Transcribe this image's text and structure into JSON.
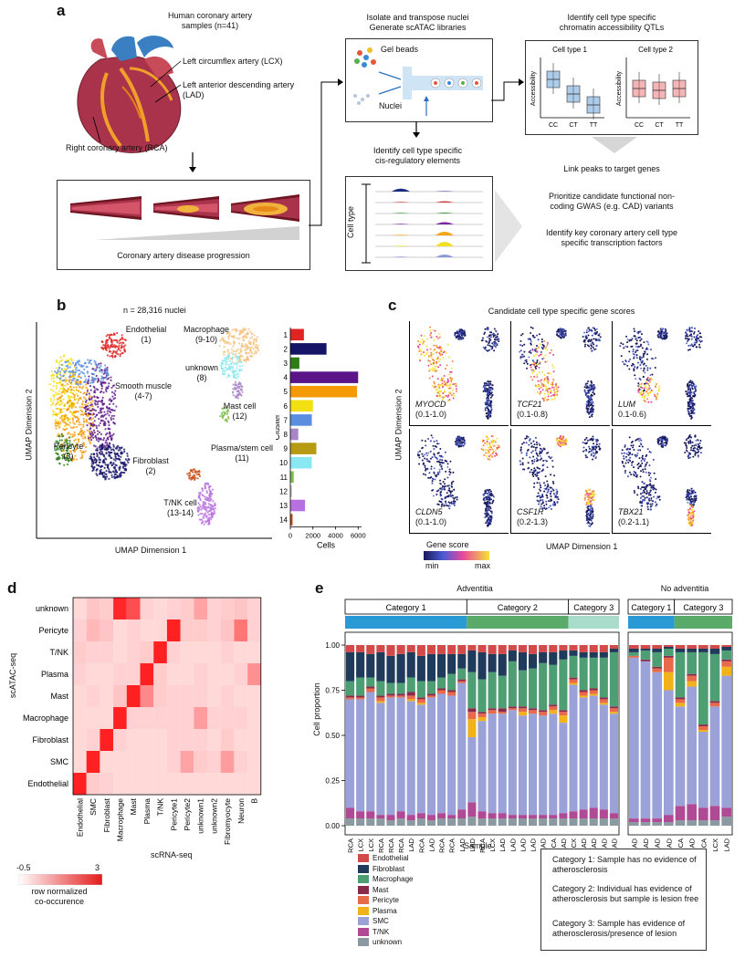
{
  "panels": {
    "a": "a",
    "b": "b",
    "c": "c",
    "d": "d",
    "e": "e"
  },
  "a": {
    "samples_title": "Human coronary artery\nsamples (n=41)",
    "lcx": "Left circumflex artery (LCX)",
    "lad": "Left anterior descending artery\n(LAD)",
    "rca": "Right coronary artery (RCA)",
    "progression": "Coronary artery disease progression",
    "isolate_title": "Isolate and transpose nuclei\nGenerate scATAC libraries",
    "gel_beads": "Gel beads",
    "nuclei": "Nuclei",
    "cre_title": "Identify cell type specific\ncis-regulatory elements",
    "cell_type_axis": "Cell type",
    "qtl_title": "Identify cell type specific\nchromatin accessibility QTLs",
    "qtl_panels": [
      {
        "title": "Cell type 1",
        "ylabel": "Accessibility",
        "genotypes": [
          "CC",
          "CT",
          "TT"
        ],
        "color": "#4a8fd0"
      },
      {
        "title": "Cell type 2",
        "ylabel": "Accessibility",
        "genotypes": [
          "CC",
          "CT",
          "TT"
        ],
        "color": "#e45b5b"
      }
    ],
    "steps": [
      "Link peaks to target genes",
      "Prioritize candidate functional  non-\ncoding GWAS (e.g. CAD) variants",
      "Identify key coronary artery cell type\nspecific transcription factors"
    ]
  },
  "b": {
    "title": "n = 28,316 nuclei",
    "xlabel": "UMAP Dimension  1",
    "ylabel": "UMAP Dimension  2",
    "clusters_labels": [
      {
        "name": "Endothelial\n(1)"
      },
      {
        "name": "Smooth muscle\n(4-7)"
      },
      {
        "name": "Pericyte\n(3)"
      },
      {
        "name": "Fibroblast\n(2)"
      },
      {
        "name": "Macrophage\n(9-10)"
      },
      {
        "name": "unknown\n(8)"
      },
      {
        "name": "Mast cell\n(12)"
      },
      {
        "name": "Plasma/stem cell\n(11)"
      },
      {
        "name": "T/NK cell\n(13-14)"
      }
    ]
  },
  "chart_data": [
    {
      "type": "bar",
      "orientation": "horizontal",
      "categories": [
        "1",
        "2",
        "3",
        "4",
        "5",
        "6",
        "7",
        "8",
        "9",
        "10",
        "11",
        "12",
        "13",
        "14"
      ],
      "values": [
        1200,
        3200,
        800,
        6000,
        5900,
        2000,
        1900,
        700,
        2300,
        1900,
        300,
        150,
        1300,
        200
      ],
      "colors": [
        "#e02424",
        "#161466",
        "#2e7d1a",
        "#5a1488",
        "#f59a07",
        "#f3e012",
        "#5c8ee0",
        "#a884c8",
        "#b59a12",
        "#8ae8f2",
        "#7dbf4a",
        "#c8c8c8",
        "#b870e0",
        "#c84a10"
      ],
      "xlabel": "Cells",
      "ylabel": "Cluster",
      "xticks": [
        "0",
        "2000",
        "4000",
        "6000"
      ],
      "xlim": [
        0,
        6300
      ]
    },
    {
      "type": "heatmap",
      "rows": [
        "unknown",
        "Pericyte",
        "T/NK",
        "Plasma",
        "Mast",
        "Macrophage",
        "Fibroblast",
        "SMC",
        "Endothelial"
      ],
      "cols": [
        "Endothelial",
        "SMC",
        "Fibroblast",
        "Macrophage",
        "Mast",
        "Plasma",
        "T/NK",
        "Pericyte1",
        "Pericyte2",
        "unknown1",
        "unknown2",
        "Fibromyocyte",
        "Neuron",
        "B"
      ],
      "values": [
        [
          0.1,
          0.4,
          0.3,
          2.8,
          2.2,
          0.2,
          0.1,
          0.2,
          0.3,
          0.9,
          0.2,
          0.3,
          0.4,
          0.2
        ],
        [
          0.2,
          0.6,
          0.4,
          0.1,
          0.2,
          0.1,
          0.1,
          2.9,
          0.3,
          0.3,
          0.2,
          0.4,
          1.6,
          0.2
        ],
        [
          0.3,
          0.2,
          0.2,
          0.1,
          0.2,
          0.3,
          2.9,
          0.2,
          0.1,
          0.1,
          0.1,
          0.2,
          0.1,
          0.1
        ],
        [
          0.2,
          0.1,
          0.1,
          0.2,
          0.2,
          2.9,
          0.3,
          0.1,
          0.1,
          0.2,
          0.1,
          0.1,
          0.2,
          1.2
        ],
        [
          0.1,
          0.2,
          0.1,
          0.4,
          2.9,
          1.3,
          0.3,
          0.2,
          0.2,
          0.2,
          0.1,
          0.2,
          0.1,
          0.1
        ],
        [
          0.1,
          0.1,
          0.1,
          2.9,
          0.2,
          0.2,
          0.2,
          0.2,
          0.2,
          1.0,
          0.2,
          0.2,
          0.2,
          0.1
        ],
        [
          0.1,
          0.2,
          2.9,
          0.2,
          0.1,
          0.1,
          0.1,
          0.2,
          0.2,
          0.2,
          0.1,
          0.3,
          0.1,
          0.1
        ],
        [
          0.1,
          2.9,
          0.1,
          0.1,
          0.1,
          0.1,
          0.1,
          0.2,
          0.9,
          0.3,
          0.2,
          1.0,
          0.2,
          0.1
        ],
        [
          2.9,
          0.3,
          0.2,
          0.1,
          0.1,
          0.1,
          0.1,
          0.1,
          0.1,
          0.1,
          0.1,
          0.1,
          0.1,
          0.1
        ]
      ],
      "xlabel": "scRNA-seq",
      "ylabel": "scATAC-seq",
      "colorscale": {
        "min": -0.5,
        "max": 3,
        "min_label": "-0.5",
        "max_label": "3",
        "label": "row normalized\nco-occurence",
        "low_color": "#ffffff",
        "high_color": "#e41a1c"
      }
    },
    {
      "type": "bar",
      "stacked": true,
      "title_groups": [
        "Adventitia",
        "No adventitia"
      ],
      "ylabel": "Cell proportion",
      "xlabel": "Sample",
      "yticks": [
        "0.00",
        "0.25",
        "0.50",
        "0.75",
        "1.00"
      ],
      "ylim": [
        0,
        1
      ],
      "categories_groups": [
        [
          "Category 1",
          "Category 2",
          "Category 3"
        ],
        [
          "Category 1",
          "Category 3"
        ]
      ],
      "category_colors": [
        "#2a9ad6",
        "#5aaa6a",
        "#a9dccb"
      ],
      "series_names": [
        "Endothelial",
        "Fibroblast",
        "Macrophage",
        "Mast",
        "Pericyte",
        "Plasma",
        "SMC",
        "T/NK",
        "unknown"
      ],
      "series_colors": [
        "#d24a4a",
        "#1f3a5a",
        "#4e9e74",
        "#8a2a4a",
        "#e86a4a",
        "#f2b21a",
        "#9aa2d8",
        "#b04a94",
        "#8a9aa0"
      ],
      "samples_adventitia": [
        "RCA",
        "LCX",
        "LCX",
        "RCA",
        "RCA",
        "RCA",
        "LAD",
        "RCA",
        "LAD",
        "RCA",
        "RCA",
        "LAD",
        "LAD",
        "RCA",
        "LCX",
        "LAD",
        "LAD",
        "LAD",
        "LAD",
        "LAD",
        "RCA",
        "LAD",
        "LCX",
        "LAD",
        "LAD",
        "LAD",
        "LAD"
      ],
      "samples_no_adventitia": [
        "LAD",
        "LAD",
        "LAD",
        "LAD",
        "RCA",
        "LAD",
        "RCA",
        "LCX",
        "LAD"
      ],
      "adventitia_categories": [
        0,
        0,
        0,
        0,
        0,
        0,
        0,
        0,
        0,
        0,
        0,
        0,
        1,
        1,
        1,
        1,
        1,
        1,
        1,
        1,
        1,
        1,
        2,
        2,
        2,
        2,
        2
      ],
      "no_adventitia_categories": [
        0,
        0,
        0,
        0,
        1,
        1,
        1,
        1,
        1
      ],
      "values_adventitia": [
        [
          0.04,
          0.16,
          0.08,
          0.01,
          0.01,
          0.0,
          0.6,
          0.06,
          0.04
        ],
        [
          0.04,
          0.14,
          0.1,
          0.01,
          0.01,
          0.0,
          0.62,
          0.04,
          0.04
        ],
        [
          0.05,
          0.13,
          0.05,
          0.01,
          0.02,
          0.0,
          0.66,
          0.04,
          0.04
        ],
        [
          0.04,
          0.16,
          0.08,
          0.01,
          0.02,
          0.01,
          0.62,
          0.02,
          0.04
        ],
        [
          0.06,
          0.15,
          0.06,
          0.01,
          0.01,
          0.0,
          0.65,
          0.03,
          0.03
        ],
        [
          0.05,
          0.16,
          0.06,
          0.01,
          0.01,
          0.0,
          0.63,
          0.04,
          0.04
        ],
        [
          0.04,
          0.14,
          0.08,
          0.02,
          0.02,
          0.01,
          0.63,
          0.03,
          0.03
        ],
        [
          0.06,
          0.14,
          0.09,
          0.01,
          0.02,
          0.01,
          0.6,
          0.03,
          0.04
        ],
        [
          0.05,
          0.15,
          0.07,
          0.01,
          0.01,
          0.0,
          0.65,
          0.03,
          0.03
        ],
        [
          0.05,
          0.13,
          0.06,
          0.01,
          0.02,
          0.0,
          0.66,
          0.03,
          0.04
        ],
        [
          0.05,
          0.11,
          0.09,
          0.01,
          0.02,
          0.0,
          0.66,
          0.02,
          0.04
        ],
        [
          0.05,
          0.08,
          0.06,
          0.01,
          0.01,
          0.0,
          0.7,
          0.05,
          0.04
        ],
        [
          0.03,
          0.12,
          0.2,
          0.02,
          0.04,
          0.1,
          0.36,
          0.08,
          0.05
        ],
        [
          0.04,
          0.15,
          0.18,
          0.01,
          0.02,
          0.02,
          0.5,
          0.04,
          0.04
        ],
        [
          0.05,
          0.1,
          0.2,
          0.01,
          0.02,
          0.0,
          0.55,
          0.03,
          0.04
        ],
        [
          0.05,
          0.12,
          0.18,
          0.02,
          0.01,
          0.0,
          0.55,
          0.03,
          0.04
        ],
        [
          0.03,
          0.06,
          0.25,
          0.01,
          0.01,
          0.0,
          0.58,
          0.02,
          0.04
        ],
        [
          0.04,
          0.1,
          0.2,
          0.01,
          0.02,
          0.02,
          0.55,
          0.02,
          0.04
        ],
        [
          0.05,
          0.08,
          0.22,
          0.01,
          0.02,
          0.0,
          0.56,
          0.02,
          0.04
        ],
        [
          0.04,
          0.06,
          0.26,
          0.01,
          0.02,
          0.0,
          0.55,
          0.02,
          0.04
        ],
        [
          0.04,
          0.07,
          0.22,
          0.01,
          0.02,
          0.02,
          0.56,
          0.02,
          0.04
        ],
        [
          0.03,
          0.05,
          0.28,
          0.01,
          0.02,
          0.04,
          0.5,
          0.03,
          0.04
        ],
        [
          0.03,
          0.03,
          0.12,
          0.01,
          0.02,
          0.01,
          0.7,
          0.04,
          0.04
        ],
        [
          0.04,
          0.03,
          0.18,
          0.01,
          0.02,
          0.01,
          0.62,
          0.05,
          0.04
        ],
        [
          0.04,
          0.03,
          0.17,
          0.01,
          0.02,
          0.01,
          0.62,
          0.06,
          0.04
        ],
        [
          0.04,
          0.03,
          0.22,
          0.01,
          0.02,
          0.01,
          0.58,
          0.05,
          0.04
        ],
        [
          0.02,
          0.02,
          0.3,
          0.01,
          0.02,
          0.01,
          0.55,
          0.03,
          0.04
        ]
      ],
      "values_no_adventitia": [
        [
          0.02,
          0.02,
          0.02,
          0.0,
          0.01,
          0.0,
          0.89,
          0.02,
          0.02
        ],
        [
          0.02,
          0.01,
          0.05,
          0.01,
          0.0,
          0.0,
          0.87,
          0.02,
          0.02
        ],
        [
          0.02,
          0.02,
          0.08,
          0.01,
          0.02,
          0.0,
          0.81,
          0.02,
          0.02
        ],
        [
          0.01,
          0.01,
          0.04,
          0.01,
          0.08,
          0.1,
          0.69,
          0.04,
          0.02
        ],
        [
          0.02,
          0.02,
          0.25,
          0.01,
          0.02,
          0.02,
          0.55,
          0.08,
          0.03
        ],
        [
          0.02,
          0.02,
          0.12,
          0.01,
          0.03,
          0.03,
          0.65,
          0.09,
          0.03
        ],
        [
          0.02,
          0.02,
          0.4,
          0.01,
          0.02,
          0.01,
          0.42,
          0.07,
          0.03
        ],
        [
          0.02,
          0.03,
          0.26,
          0.01,
          0.02,
          0.0,
          0.55,
          0.08,
          0.03
        ],
        [
          0.01,
          0.02,
          0.05,
          0.01,
          0.03,
          0.05,
          0.73,
          0.05,
          0.05
        ]
      ]
    }
  ],
  "c": {
    "title": "Candidate cell type specific gene scores",
    "xlabel": "UMAP Dimension  1",
    "ylabel": "UMAP Dimension  2",
    "genes": [
      {
        "gene": "MYOCD",
        "range": "(0.1-1.0)"
      },
      {
        "gene": "TCF21",
        "range": "(0.1-0.8)"
      },
      {
        "gene": "LUM",
        "range": "0.1-0.6)"
      },
      {
        "gene": "CLDN5",
        "range": "(0.1-1.0)"
      },
      {
        "gene": "CSF1R",
        "range": "(0.2-1.3)"
      },
      {
        "gene": "TBX21",
        "range": "(0.2-1.1)"
      }
    ],
    "legend_title": "Gene score",
    "legend_min": "min",
    "legend_max": "max"
  },
  "e_legend": {
    "categories_text": [
      "Category 1: Sample has no evidence of\natherosclerosis",
      "Category 2: Individual has evidence of\natherosclerosis but sample is lesion free",
      "Category 3: Sample has evidence of\natherosclerosis/presence of lesion"
    ]
  }
}
